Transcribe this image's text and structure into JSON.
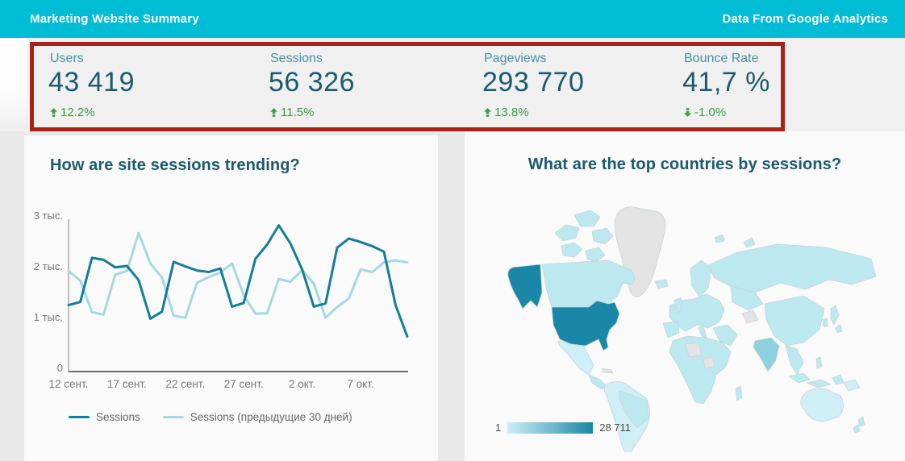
{
  "header": {
    "title": "Marketing Website Summary",
    "source_label": "Data From Google Analytics"
  },
  "scorecards": {
    "cards": [
      {
        "label": "Users",
        "value": "43 419",
        "delta": "12.2%",
        "direction": "up"
      },
      {
        "label": "Sessions",
        "value": "56 326",
        "delta": "11.5%",
        "direction": "up"
      },
      {
        "label": "Pageviews",
        "value": "293 770",
        "delta": "13.8%",
        "direction": "up"
      },
      {
        "label": "Bounce Rate",
        "value": "41,7 %",
        "delta": "-1.0%",
        "direction": "down"
      }
    ]
  },
  "chart_data": [
    {
      "type": "line",
      "title": "How are site sessions trending?",
      "xlabel": "",
      "ylabel": "",
      "ylim": [
        0,
        3000
      ],
      "grid": false,
      "legend_position": "bottom",
      "y_ticks": [
        "0",
        "1 тыс.",
        "2 тыс.",
        "3 тыс."
      ],
      "x_tick_labels": [
        "12 сент.",
        "17 сент.",
        "22 сент.",
        "27 сент.",
        "2 окт.",
        "7 окт."
      ],
      "x_tick_positions": [
        0,
        5,
        10,
        15,
        20,
        25
      ],
      "series": [
        {
          "name": "Sessions",
          "color": "#147d97",
          "values": [
            1310,
            1370,
            2240,
            2200,
            2050,
            2080,
            1800,
            1040,
            1180,
            2160,
            2070,
            1990,
            1960,
            2030,
            1280,
            1350,
            2220,
            2500,
            2880,
            2520,
            2010,
            1280,
            1340,
            2440,
            2620,
            2550,
            2470,
            2360,
            1310,
            690
          ]
        },
        {
          "name": "Sessions (предыдущие 30 дней)",
          "color": "#a6d8de",
          "values": [
            1980,
            1790,
            1170,
            1120,
            1910,
            1980,
            2730,
            2130,
            1850,
            1100,
            1060,
            1750,
            1860,
            1950,
            2130,
            1500,
            1140,
            1150,
            1820,
            1770,
            2000,
            1730,
            1060,
            1270,
            1440,
            2010,
            1960,
            2150,
            2190,
            2150
          ]
        }
      ]
    },
    {
      "type": "heatmap",
      "subtype": "choropleth-world-map",
      "title": "What are the top countries by sessions?",
      "metric": "Sessions",
      "legend": {
        "min_label": "1",
        "max_label": "28 711"
      },
      "legend_position": "bottom-left",
      "scale": {
        "min": 1,
        "max": 28711,
        "min_color": "#cdeff5",
        "max_color": "#1987a5",
        "no_data_color": "#e3e3e3"
      },
      "darkest_region": "United States"
    }
  ],
  "colors": {
    "header_bg": "#00bcd4",
    "header_text": "#ffffff",
    "page_bg": "#e9e9e9",
    "strip_bg": "#f0f0f0",
    "panel_bg": "#fafafa",
    "annotation_red": "#aa2217",
    "card_label": "#4a8fa0",
    "card_value": "#1b5a6d",
    "delta_green": "#3c9b42",
    "title_teal": "#1d5a6d",
    "axis_text": "#757575",
    "axis_line_x": "#6e6e6e",
    "axis_line_y": "#9e9e9e",
    "map_low": "#bce8f0",
    "map_lighter": "#cdeff5",
    "map_mid": "#8fd0de",
    "map_high": "#1987a5",
    "map_nodata": "#e3e3e3",
    "map_border": "#c9d4d8"
  }
}
